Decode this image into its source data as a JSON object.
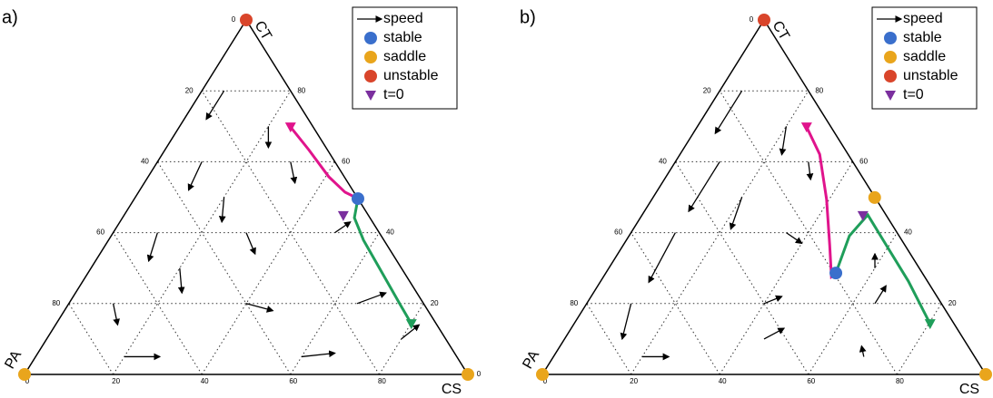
{
  "chart_data": [
    {
      "type": "ternary",
      "panel_label": "a)",
      "vertices": {
        "top": "CT",
        "left": "PA",
        "right": "CS"
      },
      "ticks": [
        0,
        20,
        40,
        60,
        80
      ],
      "grid": true,
      "legend": [
        {
          "name": "speed",
          "marker": "arrow",
          "color": "#000000"
        },
        {
          "name": "stable",
          "marker": "circle",
          "color": "#3a6fcc",
          "points": [
            [
              49.6,
              50.4
            ]
          ]
        },
        {
          "name": "saddle",
          "marker": "circle",
          "color": "#e9a51c",
          "points": [
            [
              0,
              0
            ],
            [
              0,
              100
            ]
          ]
        },
        {
          "name": "unstable",
          "marker": "circle",
          "color": "#d9452b",
          "points": [
            [
              100,
              0
            ]
          ]
        },
        {
          "name": "t=0",
          "marker": "triangle",
          "color": "#7b2f9e",
          "points": [
            [
              44.8,
              49.5
            ]
          ]
        }
      ],
      "trajectories": [
        {
          "color": "#e0148c",
          "ct": [
            69.8,
            63.4,
            55.8,
            51.4,
            49.6
          ],
          "cs": [
            25.1,
            32.4,
            40.7,
            46.6,
            50.4
          ]
        },
        {
          "color": "#1f9e5a",
          "ct": [
            14.3,
            19.9,
            28.9,
            37.9,
            44.2,
            49.6
          ],
          "cs": [
            80.1,
            74.7,
            66.1,
            57.5,
            52.3,
            50.4
          ]
        }
      ],
      "field": [
        [
          80,
          5,
          -8,
          0
        ],
        [
          70,
          20,
          -6,
          3
        ],
        [
          60,
          10,
          -8,
          1
        ],
        [
          60,
          30,
          -6,
          4
        ],
        [
          40,
          10,
          -8,
          2
        ],
        [
          40,
          30,
          -6,
          5
        ],
        [
          40,
          50,
          3,
          2
        ],
        [
          20,
          10,
          -6,
          4
        ],
        [
          20,
          40,
          -2,
          7
        ],
        [
          20,
          65,
          3,
          5
        ],
        [
          5,
          20,
          0,
          8
        ],
        [
          5,
          60,
          1,
          7
        ],
        [
          30,
          20,
          -7,
          4
        ],
        [
          10,
          80,
          4,
          2
        ],
        [
          50,
          20,
          -7,
          3
        ]
      ]
    },
    {
      "type": "ternary",
      "panel_label": "b)",
      "vertices": {
        "top": "CT",
        "left": "PA",
        "right": "CS"
      },
      "ticks": [
        0,
        20,
        40,
        60,
        80
      ],
      "grid": true,
      "legend": [
        {
          "name": "speed",
          "marker": "arrow",
          "color": "#000000"
        },
        {
          "name": "stable",
          "marker": "circle",
          "color": "#3a6fcc",
          "points": [
            [
              28.6,
              51.9
            ]
          ]
        },
        {
          "name": "saddle",
          "marker": "circle",
          "color": "#e9a51c",
          "points": [
            [
              0,
              0
            ],
            [
              0,
              100
            ],
            [
              49.9,
              50.0
            ]
          ]
        },
        {
          "name": "unstable",
          "marker": "circle",
          "color": "#d9452b",
          "points": [
            [
              100,
              0
            ]
          ]
        },
        {
          "name": "t=0",
          "marker": "triangle",
          "color": "#7b2f9e",
          "points": [
            [
              44.8,
              49.9
            ]
          ]
        }
      ],
      "trajectories": [
        {
          "color": "#e0148c",
          "ct": [
            69.8,
            62.1,
            49.4,
            36.6,
            27.6,
            28.6
          ],
          "cs": [
            24.7,
            31.5,
            39.4,
            46.5,
            51.4,
            51.9
          ]
        },
        {
          "color": "#1f9e5a",
          "ct": [
            14.3,
            26.3,
            36.6,
            45.0,
            39.1,
            28.6
          ],
          "cs": [
            80.3,
            69.4,
            59.2,
            50.9,
            49.7,
            51.9
          ]
        }
      ],
      "field": [
        [
          80,
          5,
          -12,
          0
        ],
        [
          70,
          20,
          -8,
          3
        ],
        [
          60,
          10,
          -14,
          0
        ],
        [
          60,
          30,
          -5,
          3
        ],
        [
          40,
          10,
          -14,
          1
        ],
        [
          40,
          35,
          -3,
          5
        ],
        [
          20,
          10,
          -10,
          3
        ],
        [
          20,
          40,
          2,
          3
        ],
        [
          20,
          65,
          5,
          0
        ],
        [
          5,
          20,
          0,
          6
        ],
        [
          5,
          70,
          3,
          -2
        ],
        [
          30,
          60,
          4,
          -2
        ],
        [
          50,
          20,
          -9,
          2
        ],
        [
          10,
          45,
          3,
          3
        ]
      ]
    }
  ]
}
